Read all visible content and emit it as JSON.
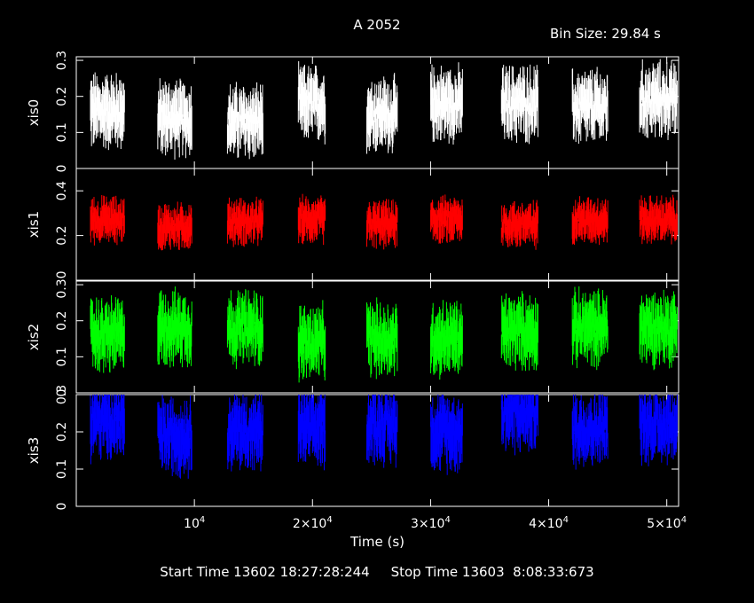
{
  "title": "A 2052",
  "bin_size": "Bin Size: 29.84 s",
  "footer": {
    "start": "Start Time 13602 18:27:28:244",
    "stop": "Stop Time 13603  8:08:33:673"
  },
  "chart_data": {
    "type": "scatter",
    "xlabel": "Time (s)",
    "xlim": [
      0,
      51000
    ],
    "x_ticks": [
      {
        "value": 10000,
        "mantissa": "10",
        "exp": "4"
      },
      {
        "value": 20000,
        "mantissa": "2×10",
        "exp": "4"
      },
      {
        "value": 30000,
        "mantissa": "3×10",
        "exp": "4"
      },
      {
        "value": 40000,
        "mantissa": "4×10",
        "exp": "4"
      },
      {
        "value": 50000,
        "mantissa": "5×10",
        "exp": "4"
      }
    ],
    "segments": [
      [
        1200,
        4100
      ],
      [
        6900,
        9800
      ],
      [
        12800,
        15800
      ],
      [
        18800,
        21100
      ],
      [
        24600,
        27200
      ],
      [
        30000,
        32700
      ],
      [
        36000,
        39100
      ],
      [
        42000,
        45000
      ],
      [
        47700,
        50900
      ]
    ],
    "panels": [
      {
        "name": "xis0",
        "color": "#ffffff",
        "ylim": [
          0,
          0.31
        ],
        "yticks": [
          0,
          0.1,
          0.2,
          0.3
        ],
        "ytick_labels": [
          "0",
          "0.1",
          "0.2",
          "0.3"
        ],
        "mean": 0.16,
        "spread": 0.05,
        "segment_levels": [
          0.16,
          0.14,
          0.13,
          0.18,
          0.15,
          0.18,
          0.18,
          0.17,
          0.19
        ]
      },
      {
        "name": "xis1",
        "color": "#ff0000",
        "ylim": [
          0,
          0.5
        ],
        "yticks": [
          0.2,
          0.4
        ],
        "ytick_labels": [
          "0.2",
          "0.4"
        ],
        "mean": 0.26,
        "spread": 0.05,
        "segment_levels": [
          0.27,
          0.24,
          0.26,
          0.27,
          0.25,
          0.27,
          0.25,
          0.27,
          0.27
        ]
      },
      {
        "name": "xis2",
        "color": "#00ff00",
        "ylim": [
          0,
          0.31
        ],
        "yticks": [
          0,
          0.1,
          0.2,
          0.3
        ],
        "ytick_labels": [
          "0",
          "0.1",
          "0.2",
          "0.30"
        ],
        "mean": 0.17,
        "spread": 0.05,
        "segment_levels": [
          0.16,
          0.18,
          0.18,
          0.14,
          0.15,
          0.15,
          0.17,
          0.18,
          0.18
        ]
      },
      {
        "name": "xis3",
        "color": "#0000ff",
        "ylim": [
          0,
          0.3
        ],
        "yticks": [
          0,
          0.1,
          0.2,
          0.3
        ],
        "ytick_labels": [
          "0",
          "0.1",
          "0.2",
          "0.3"
        ],
        "mean": 0.21,
        "spread": 0.05,
        "segment_levels": [
          0.23,
          0.19,
          0.2,
          0.21,
          0.22,
          0.2,
          0.25,
          0.21,
          0.22
        ]
      }
    ]
  }
}
